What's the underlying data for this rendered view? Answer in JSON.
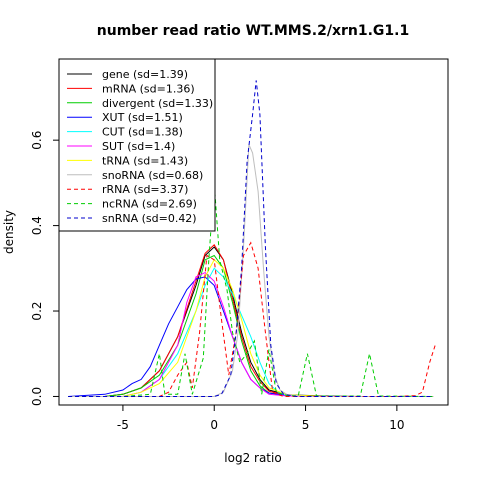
{
  "chart_data": {
    "type": "line",
    "title": "number read ratio WT.MMS.2/xrn1.G1.1",
    "xlabel": "log2 ratio",
    "ylabel": "density",
    "xlim": [
      -8.5,
      12.8
    ],
    "ylim": [
      -0.02,
      0.79
    ],
    "xticks": [
      -5,
      0,
      5,
      10
    ],
    "yticks": [
      0.0,
      0.2,
      0.4,
      0.6
    ],
    "grid": false,
    "legend_position": "top-left",
    "series": [
      {
        "name": "gene (sd=1.39)",
        "color": "#000000",
        "dash": false,
        "points": [
          [
            -8,
            0
          ],
          [
            -6,
            0
          ],
          [
            -5,
            0.005
          ],
          [
            -4,
            0.02
          ],
          [
            -3,
            0.06
          ],
          [
            -2,
            0.14
          ],
          [
            -1,
            0.26
          ],
          [
            -0.5,
            0.33
          ],
          [
            0,
            0.35
          ],
          [
            0.5,
            0.32
          ],
          [
            1,
            0.24
          ],
          [
            1.5,
            0.15
          ],
          [
            2,
            0.08
          ],
          [
            2.5,
            0.04
          ],
          [
            3,
            0.015
          ],
          [
            4,
            0.004
          ],
          [
            6,
            0.001
          ],
          [
            8,
            0
          ],
          [
            12,
            0
          ]
        ]
      },
      {
        "name": "mRNA (sd=1.36)",
        "color": "#ff0000",
        "dash": false,
        "points": [
          [
            -8,
            0
          ],
          [
            -6,
            0
          ],
          [
            -5,
            0.005
          ],
          [
            -4,
            0.02
          ],
          [
            -3,
            0.06
          ],
          [
            -2,
            0.14
          ],
          [
            -1,
            0.27
          ],
          [
            -0.5,
            0.335
          ],
          [
            0,
            0.355
          ],
          [
            0.5,
            0.32
          ],
          [
            1,
            0.23
          ],
          [
            1.5,
            0.14
          ],
          [
            2,
            0.07
          ],
          [
            2.5,
            0.035
          ],
          [
            3,
            0.012
          ],
          [
            4,
            0.003
          ],
          [
            6,
            0
          ],
          [
            12,
            0
          ]
        ]
      },
      {
        "name": "divergent (sd=1.33)",
        "color": "#00cd00",
        "dash": false,
        "points": [
          [
            -8,
            0
          ],
          [
            -6,
            0
          ],
          [
            -5,
            0.005
          ],
          [
            -4,
            0.02
          ],
          [
            -3,
            0.05
          ],
          [
            -2,
            0.12
          ],
          [
            -1,
            0.24
          ],
          [
            -0.5,
            0.32
          ],
          [
            0,
            0.33
          ],
          [
            0.5,
            0.3
          ],
          [
            1,
            0.22
          ],
          [
            1.5,
            0.13
          ],
          [
            2,
            0.06
          ],
          [
            2.5,
            0.025
          ],
          [
            3,
            0.008
          ],
          [
            4,
            0.002
          ],
          [
            6,
            0
          ],
          [
            12,
            0
          ]
        ]
      },
      {
        "name": "XUT (sd=1.51)",
        "color": "#0000ff",
        "dash": false,
        "points": [
          [
            -8,
            0
          ],
          [
            -6,
            0.005
          ],
          [
            -5,
            0.015
          ],
          [
            -4.5,
            0.03
          ],
          [
            -4,
            0.04
          ],
          [
            -3.5,
            0.07
          ],
          [
            -3,
            0.12
          ],
          [
            -2.5,
            0.17
          ],
          [
            -2,
            0.21
          ],
          [
            -1.5,
            0.25
          ],
          [
            -1,
            0.275
          ],
          [
            -0.5,
            0.28
          ],
          [
            0,
            0.26
          ],
          [
            0.5,
            0.2
          ],
          [
            1,
            0.14
          ],
          [
            1.5,
            0.08
          ],
          [
            2,
            0.04
          ],
          [
            2.5,
            0.02
          ],
          [
            3,
            0.008
          ],
          [
            4,
            0.002
          ],
          [
            6,
            0
          ],
          [
            12,
            0
          ]
        ]
      },
      {
        "name": "CUT (sd=1.38)",
        "color": "#00ffff",
        "dash": false,
        "points": [
          [
            -8,
            0
          ],
          [
            -5,
            0
          ],
          [
            -4,
            0.01
          ],
          [
            -3,
            0.04
          ],
          [
            -2,
            0.1
          ],
          [
            -1,
            0.2
          ],
          [
            -0.5,
            0.26
          ],
          [
            0,
            0.3
          ],
          [
            0.5,
            0.28
          ],
          [
            1,
            0.24
          ],
          [
            1.5,
            0.19
          ],
          [
            2,
            0.14
          ],
          [
            2.5,
            0.08
          ],
          [
            3,
            0.03
          ],
          [
            3.5,
            0.01
          ],
          [
            4,
            0.002
          ],
          [
            6,
            0
          ],
          [
            12,
            0
          ]
        ]
      },
      {
        "name": "SUT (sd=1.4)",
        "color": "#ff00ff",
        "dash": false,
        "points": [
          [
            -8,
            0
          ],
          [
            -5,
            0
          ],
          [
            -4,
            0.01
          ],
          [
            -3,
            0.04
          ],
          [
            -2,
            0.12
          ],
          [
            -1.5,
            0.22
          ],
          [
            -1,
            0.28
          ],
          [
            -0.5,
            0.29
          ],
          [
            0,
            0.27
          ],
          [
            0.5,
            0.21
          ],
          [
            1,
            0.14
          ],
          [
            1.5,
            0.08
          ],
          [
            2,
            0.04
          ],
          [
            2.5,
            0.02
          ],
          [
            3,
            0.005
          ],
          [
            4,
            0.001
          ],
          [
            6,
            0
          ],
          [
            12,
            0
          ]
        ]
      },
      {
        "name": "tRNA (sd=1.43)",
        "color": "#ffff00",
        "dash": false,
        "points": [
          [
            -8,
            0
          ],
          [
            -5,
            0
          ],
          [
            -4,
            0.01
          ],
          [
            -3,
            0.03
          ],
          [
            -2,
            0.08
          ],
          [
            -1,
            0.2
          ],
          [
            -0.5,
            0.28
          ],
          [
            0,
            0.32
          ],
          [
            0.5,
            0.3
          ],
          [
            1,
            0.25
          ],
          [
            1.5,
            0.18
          ],
          [
            2,
            0.1
          ],
          [
            2.5,
            0.05
          ],
          [
            3,
            0.02
          ],
          [
            4,
            0.004
          ],
          [
            6,
            0
          ],
          [
            12,
            0
          ]
        ]
      },
      {
        "name": "snoRNA (sd=0.68)",
        "color": "#bebebe",
        "dash": false,
        "points": [
          [
            -8,
            0
          ],
          [
            0,
            0
          ],
          [
            0.5,
            0.01
          ],
          [
            1,
            0.06
          ],
          [
            1.3,
            0.15
          ],
          [
            1.6,
            0.35
          ],
          [
            1.9,
            0.59
          ],
          [
            2.1,
            0.57
          ],
          [
            2.4,
            0.48
          ],
          [
            2.7,
            0.3
          ],
          [
            3,
            0.14
          ],
          [
            3.3,
            0.05
          ],
          [
            3.6,
            0.015
          ],
          [
            4,
            0.004
          ],
          [
            5,
            0
          ],
          [
            12,
            0
          ]
        ]
      },
      {
        "name": "rRNA (sd=3.37)",
        "color": "#ff0000",
        "dash": true,
        "points": [
          [
            -8,
            0
          ],
          [
            -3,
            0
          ],
          [
            -2.5,
            0.01
          ],
          [
            -2,
            0.05
          ],
          [
            -1.5,
            0.08
          ],
          [
            -1.2,
            0.02
          ],
          [
            -0.8,
            0.15
          ],
          [
            -0.4,
            0.33
          ],
          [
            0,
            0.32
          ],
          [
            0.4,
            0.18
          ],
          [
            0.8,
            0.05
          ],
          [
            1.2,
            0.15
          ],
          [
            1.6,
            0.33
          ],
          [
            2,
            0.36
          ],
          [
            2.4,
            0.3
          ],
          [
            2.8,
            0.15
          ],
          [
            3.2,
            0.01
          ],
          [
            3.8,
            0
          ],
          [
            10,
            0
          ],
          [
            11,
            0.002
          ],
          [
            11.4,
            0.01
          ],
          [
            11.8,
            0.08
          ],
          [
            12.1,
            0.12
          ]
        ]
      },
      {
        "name": "ncRNA (sd=2.69)",
        "color": "#00cd00",
        "dash": true,
        "points": [
          [
            -8,
            0
          ],
          [
            -5,
            0
          ],
          [
            -3.5,
            0.005
          ],
          [
            -3,
            0.1
          ],
          [
            -2.7,
            0.005
          ],
          [
            -2,
            0.005
          ],
          [
            -1.6,
            0.1
          ],
          [
            -1.2,
            0.005
          ],
          [
            -0.6,
            0.09
          ],
          [
            -0.3,
            0.32
          ],
          [
            0,
            0.5
          ],
          [
            0.3,
            0.32
          ],
          [
            0.7,
            0.25
          ],
          [
            1,
            0.15
          ],
          [
            1.4,
            0.08
          ],
          [
            1.8,
            0.1
          ],
          [
            2.2,
            0.13
          ],
          [
            2.6,
            0.005
          ],
          [
            3,
            0.11
          ],
          [
            3.4,
            0.01
          ],
          [
            4,
            0.002
          ],
          [
            4.6,
            0.001
          ],
          [
            5.1,
            0.1
          ],
          [
            5.6,
            0.001
          ],
          [
            8,
            0.001
          ],
          [
            8.5,
            0.1
          ],
          [
            9,
            0.001
          ],
          [
            12,
            0
          ]
        ]
      },
      {
        "name": "snRNA (sd=0.42)",
        "color": "#0000cd",
        "dash": true,
        "points": [
          [
            -8,
            0
          ],
          [
            0,
            0
          ],
          [
            0.4,
            0.005
          ],
          [
            0.9,
            0.05
          ],
          [
            1.2,
            0.15
          ],
          [
            1.5,
            0.3
          ],
          [
            1.8,
            0.55
          ],
          [
            2.1,
            0.66
          ],
          [
            2.3,
            0.74
          ],
          [
            2.5,
            0.66
          ],
          [
            2.8,
            0.35
          ],
          [
            3.1,
            0.12
          ],
          [
            3.4,
            0.03
          ],
          [
            3.8,
            0.005
          ],
          [
            4.5,
            0
          ],
          [
            12,
            0
          ]
        ]
      }
    ]
  }
}
